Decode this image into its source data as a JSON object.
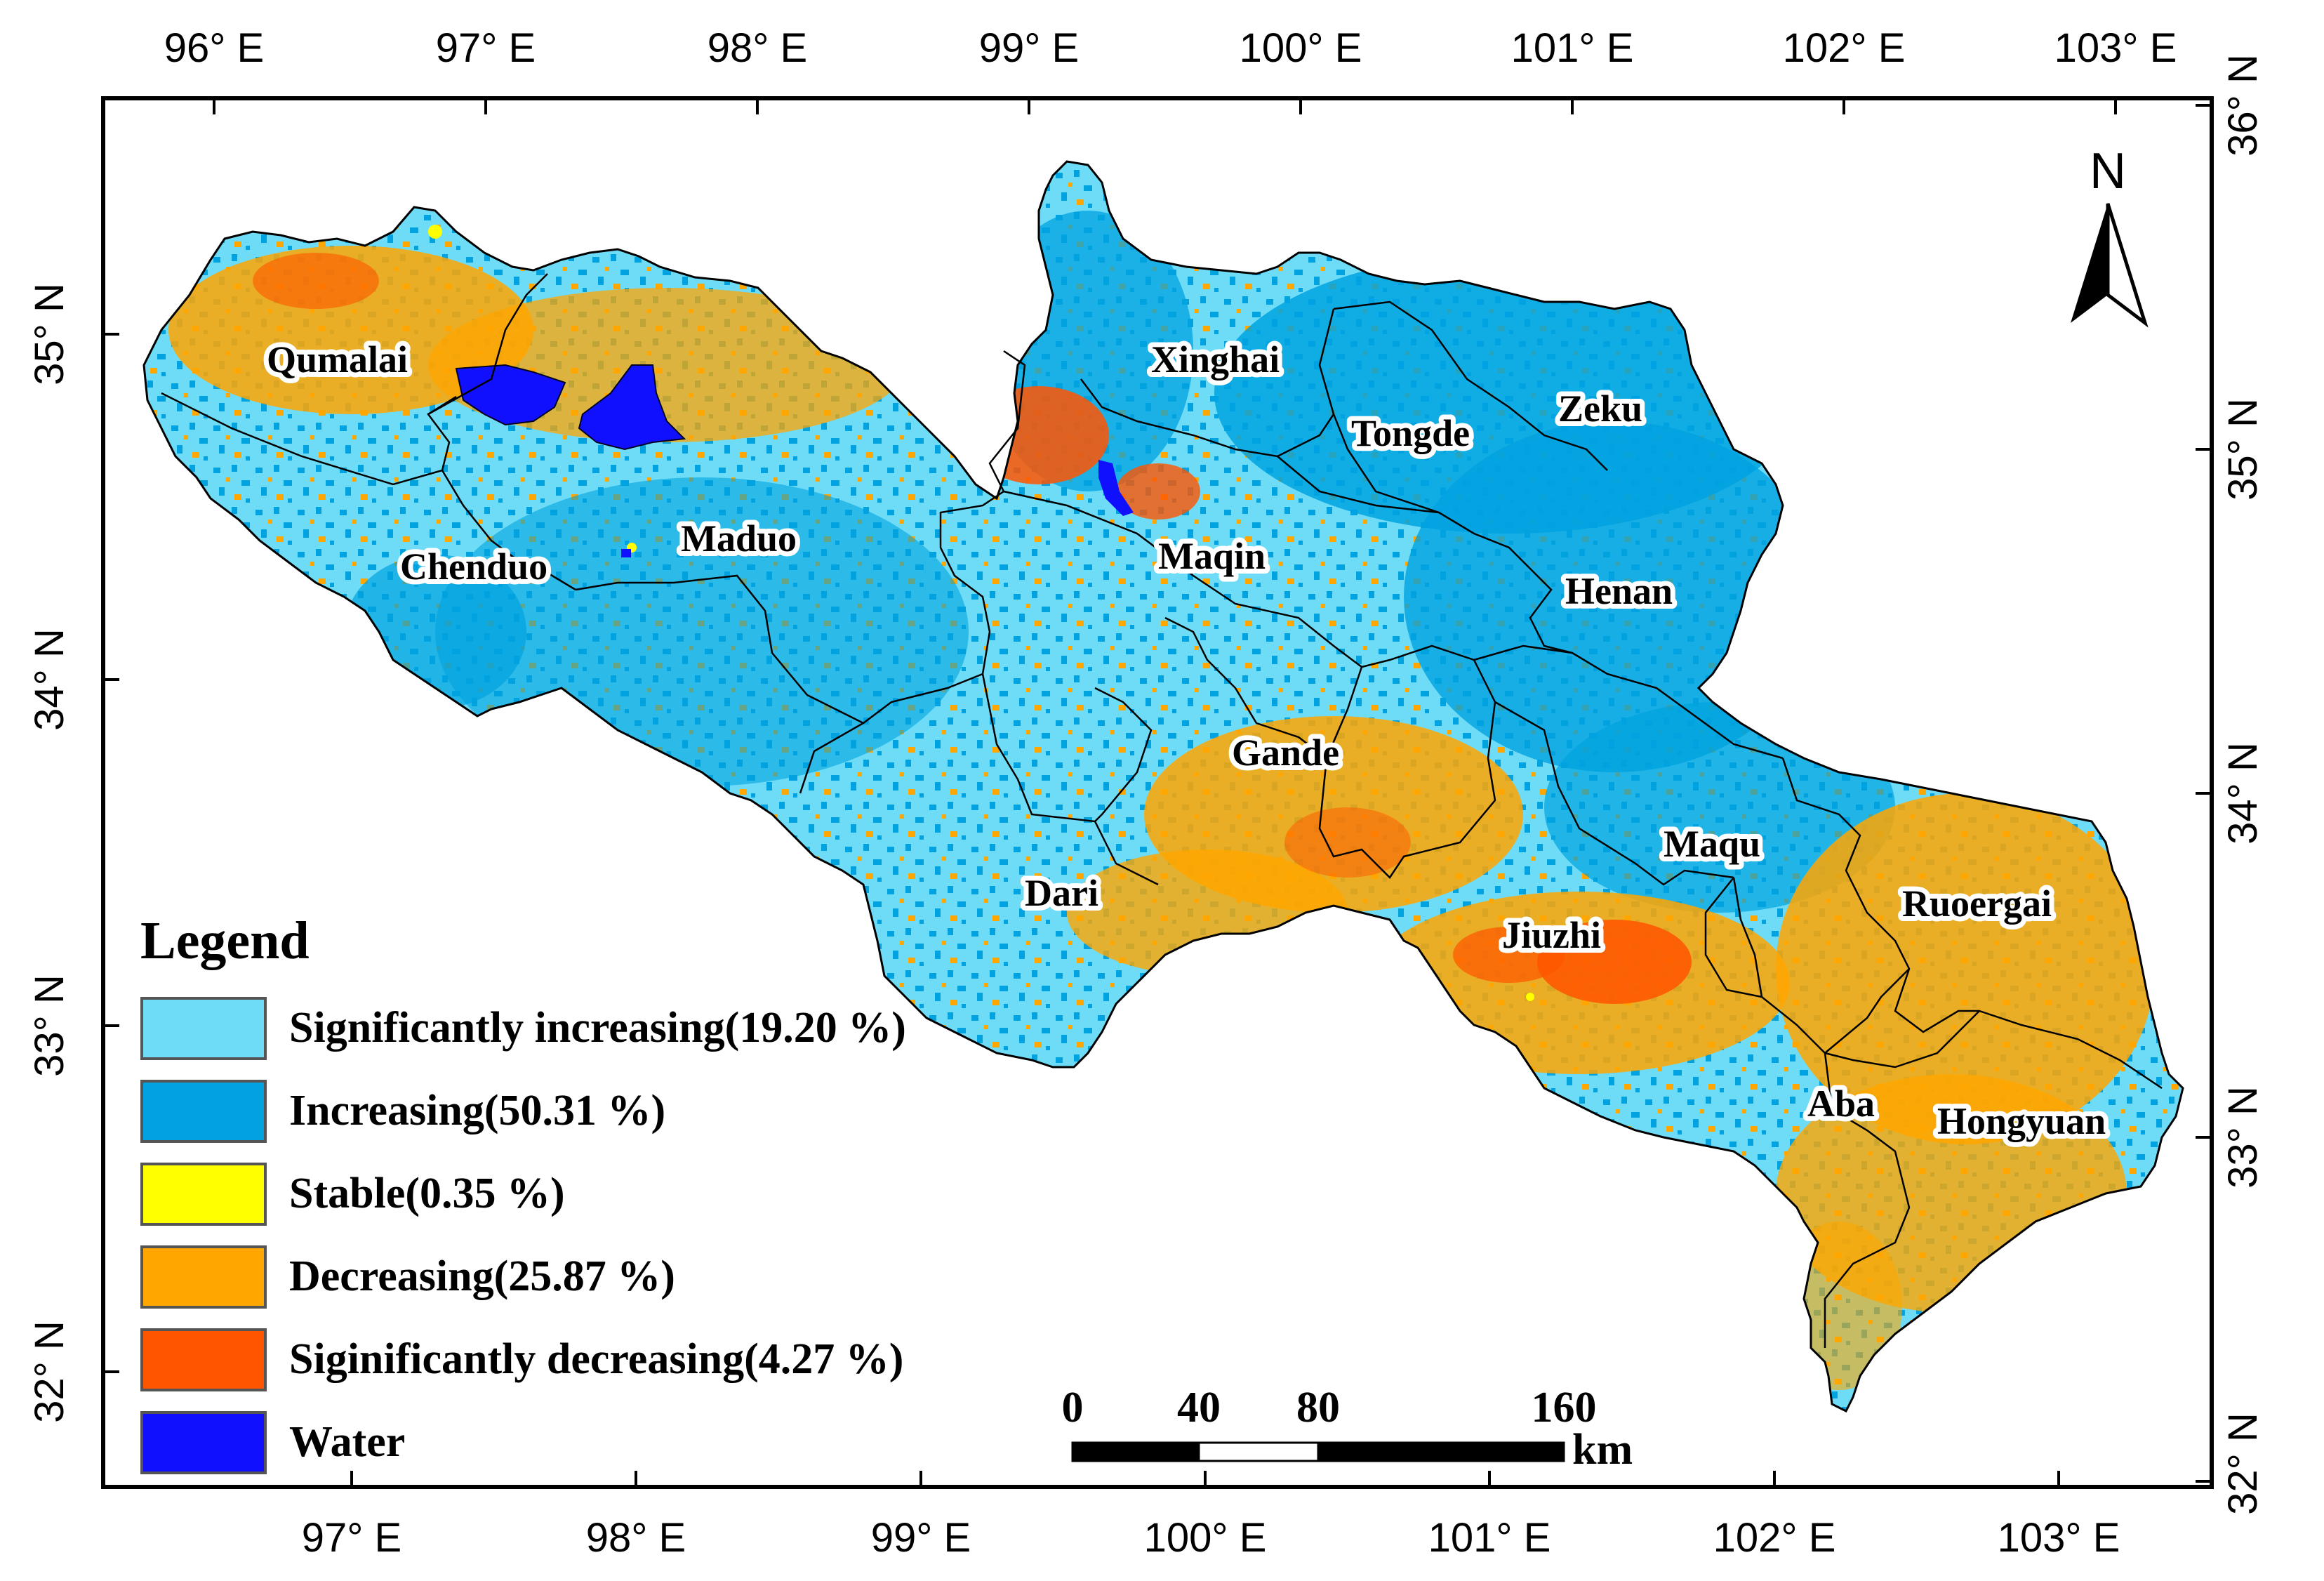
{
  "map": {
    "top_lon_ticks": [
      "96° E",
      "97° E",
      "98° E",
      "99° E",
      "100° E",
      "101° E",
      "102° E",
      "103° E"
    ],
    "bottom_lon_ticks": [
      "97° E",
      "98° E",
      "99° E",
      "100° E",
      "101° E",
      "102° E",
      "103° E"
    ],
    "left_lat_ticks": [
      "35° N",
      "34° N",
      "33° N",
      "32° N"
    ],
    "right_lat_ticks": [
      "36° N",
      "35° N",
      "34° N",
      "33° N",
      "32° N"
    ],
    "counties": [
      "Qumalai",
      "Xinghai",
      "Tongde",
      "Zeku",
      "Maduo",
      "Chenduo",
      "Maqin",
      "Henan",
      "Gande",
      "Maqu",
      "Dari",
      "Ruoergai",
      "Jiuzhi",
      "Aba",
      "Hongyuan"
    ],
    "north_label": "N"
  },
  "legend": {
    "title": "Legend",
    "items": [
      {
        "label": "Significantly increasing(19.20 %)",
        "color": "#6fdcf7"
      },
      {
        "label": "Increasing(50.31 %)",
        "color": "#00a3e0"
      },
      {
        "label": "Stable(0.35 %)",
        "color": "#ffff00"
      },
      {
        "label": "Decreasing(25.87 %)",
        "color": "#ffa600"
      },
      {
        "label": "Siginificantly decreasing(4.27 %)",
        "color": "#ff5500"
      },
      {
        "label": "Water",
        "color": "#1010ff"
      }
    ]
  },
  "scale_bar": {
    "labels": [
      "0",
      "40",
      "80",
      "160"
    ],
    "unit": "km"
  }
}
